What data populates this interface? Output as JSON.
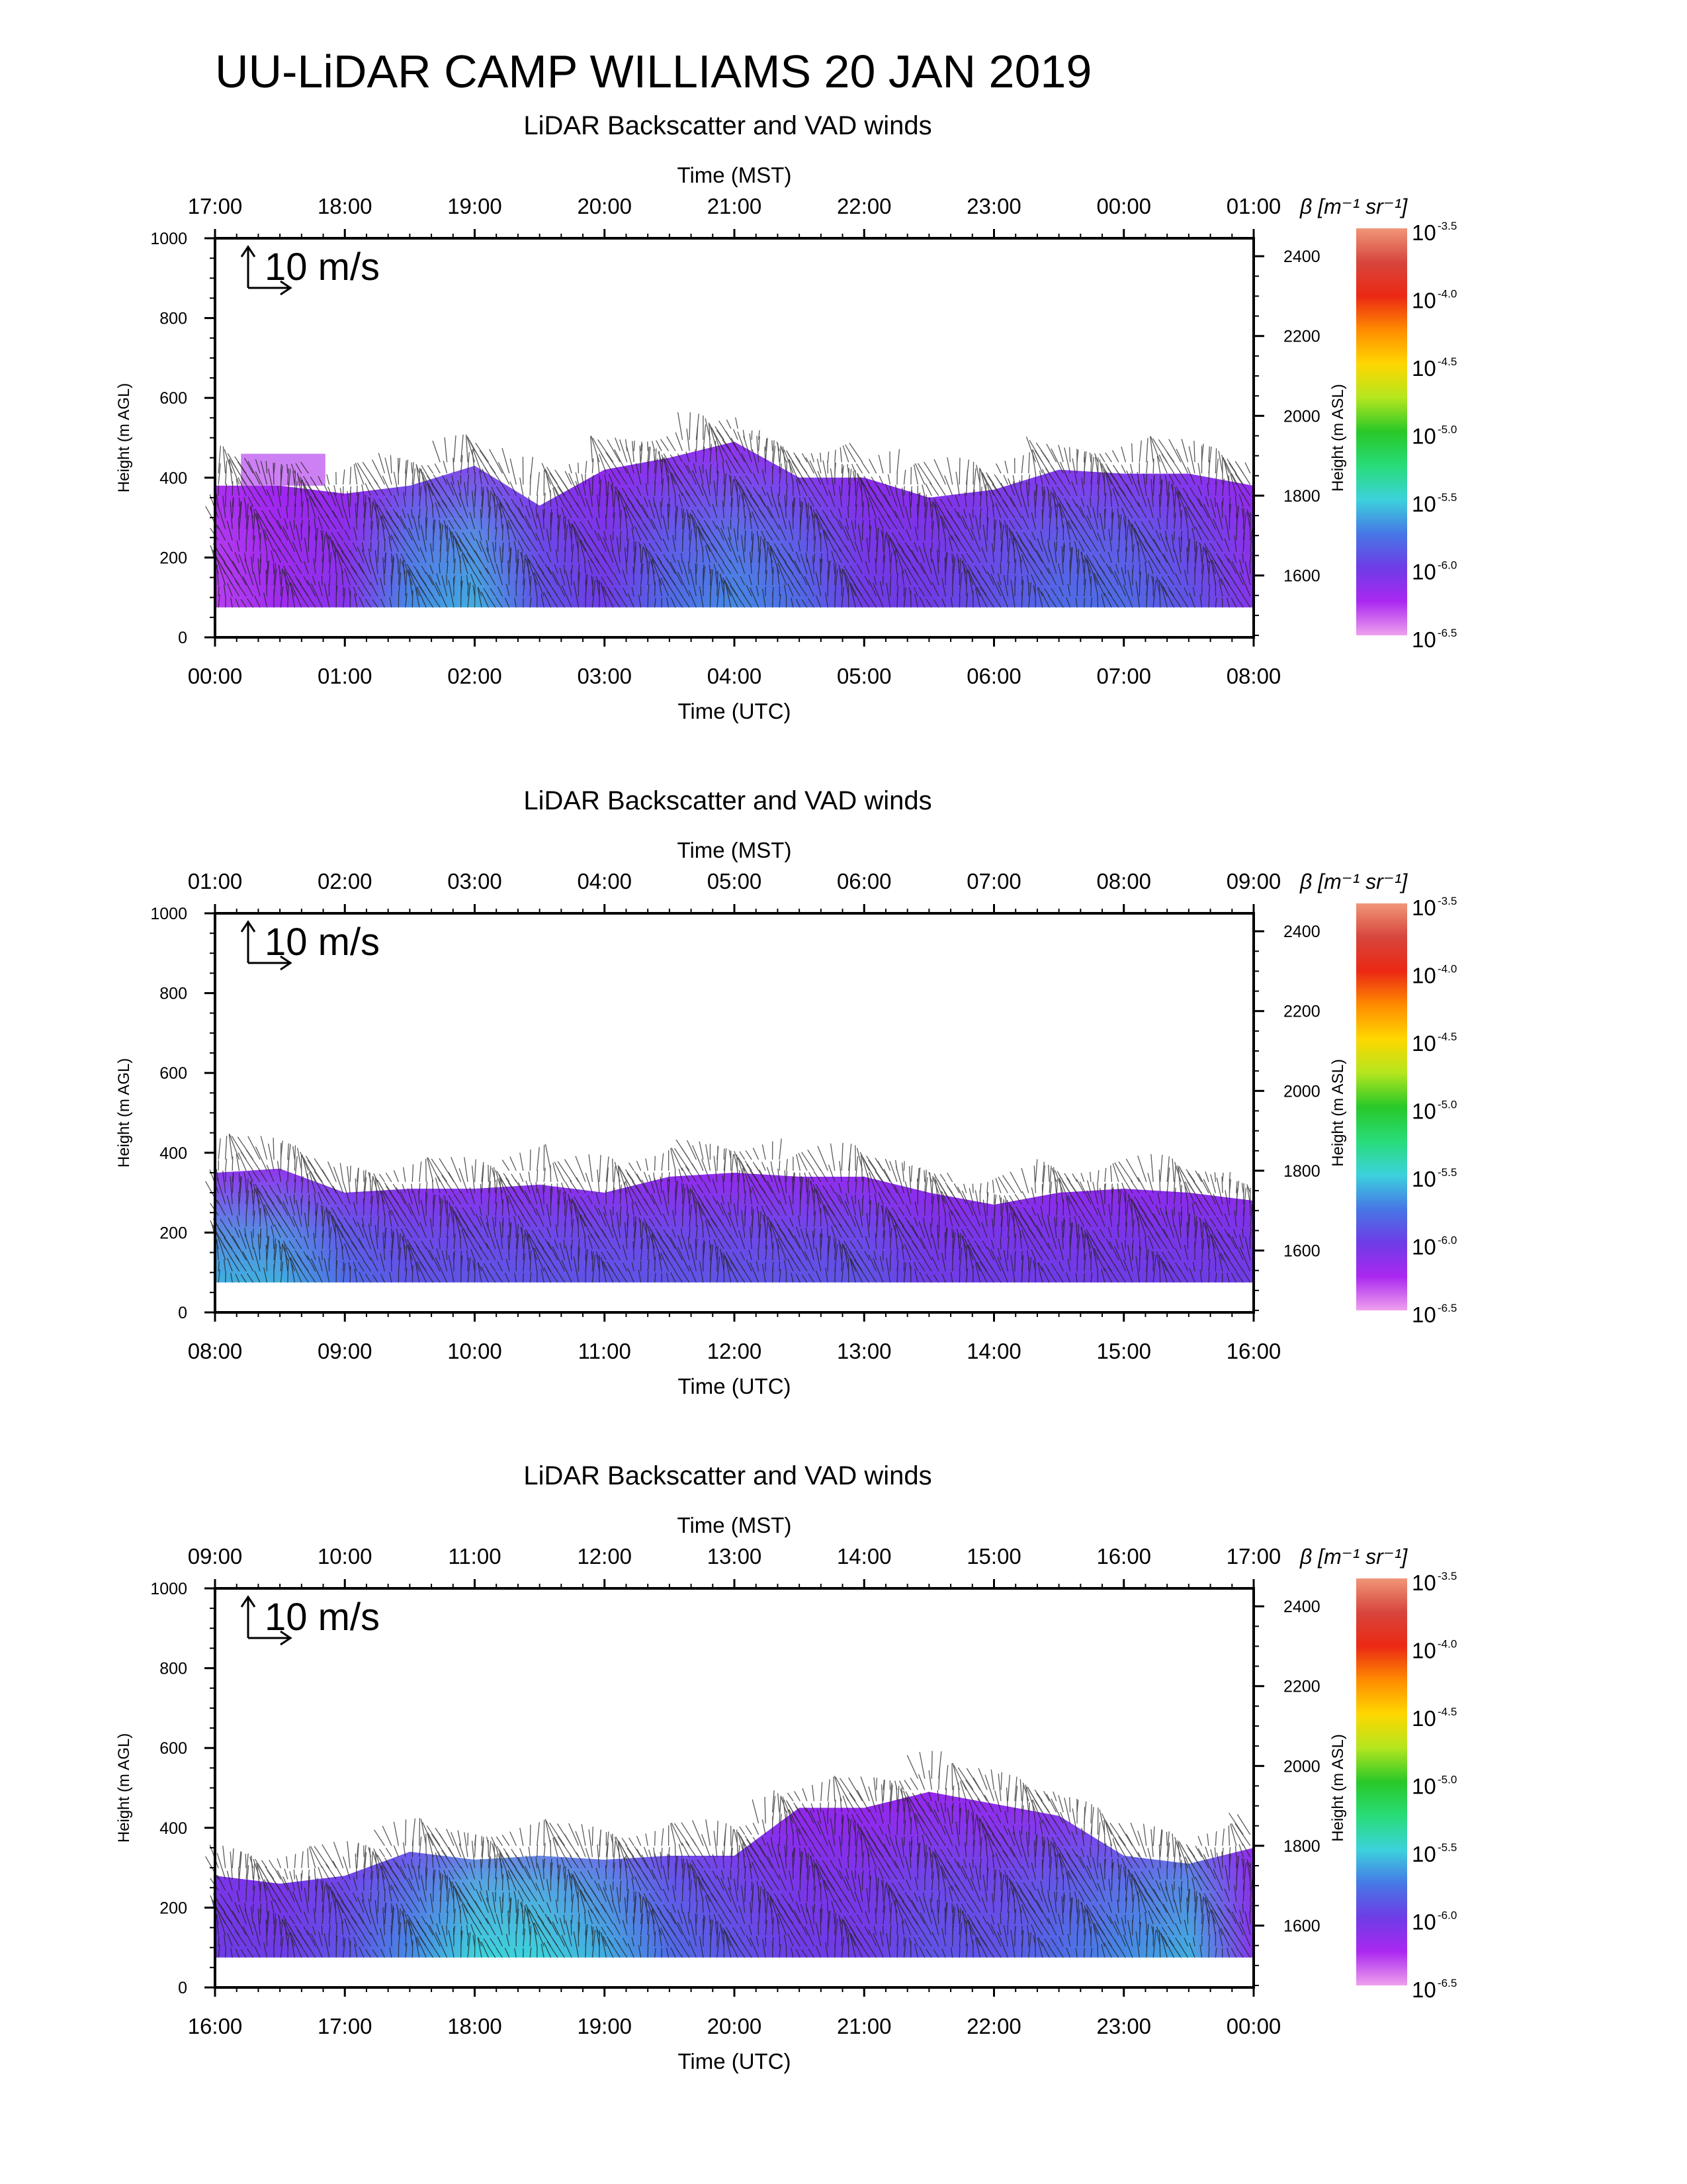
{
  "page": {
    "title": "UU-LiDAR CAMP WILLIAMS 20 JAN 2019"
  },
  "chart_data": [
    {
      "type": "heatmap",
      "title": "LiDAR Backscatter and VAD winds",
      "xlabel_bottom": "Time (UTC)",
      "xlabel_top": "Time (MST)",
      "ylabel_left": "Height (m AGL)",
      "ylabel_right": "Height (m ASL)",
      "bottom_ticks": [
        "00:00",
        "01:00",
        "02:00",
        "03:00",
        "04:00",
        "05:00",
        "06:00",
        "07:00",
        "08:00"
      ],
      "top_ticks": [
        "17:00",
        "18:00",
        "19:00",
        "20:00",
        "21:00",
        "22:00",
        "23:00",
        "00:00",
        "01:00"
      ],
      "y_left_ticks": [
        0,
        200,
        400,
        600,
        800,
        1000
      ],
      "y_right_ticks": [
        1600,
        1800,
        2000,
        2200,
        2400
      ],
      "ylim_agl": [
        0,
        1000
      ],
      "ylim_asl": [
        1445,
        2445
      ],
      "wind_reference": "10 m/s",
      "colorbar": {
        "label": "β [m⁻¹ sr⁻¹]",
        "base": "10",
        "exponents": [
          "-3.5",
          "-4.0",
          "-4.5",
          "-5.0",
          "-5.5",
          "-6.0",
          "-6.5"
        ]
      },
      "x_hours": [
        0,
        0.5,
        1,
        1.5,
        2,
        2.5,
        3,
        3.5,
        4,
        4.5,
        5,
        5.5,
        6,
        6.5,
        7,
        7.5,
        8
      ],
      "layer_top_agl": [
        380,
        380,
        360,
        380,
        430,
        330,
        420,
        450,
        490,
        400,
        400,
        350,
        370,
        420,
        410,
        410,
        380
      ],
      "layer_bottom_agl": 75,
      "max_log_beta": [
        -6.3,
        -6.2,
        -6.1,
        -5.7,
        -5.6,
        -5.9,
        -6.0,
        -5.8,
        -5.7,
        -5.8,
        -6.0,
        -6.0,
        -5.9,
        -5.8,
        -5.8,
        -5.9,
        -6.1
      ],
      "upper_patch": {
        "x_hours": [
          0.2,
          0.85
        ],
        "top_agl": 460,
        "bottom_agl": 380
      }
    },
    {
      "type": "heatmap",
      "title": "LiDAR Backscatter and VAD winds",
      "xlabel_bottom": "Time (UTC)",
      "xlabel_top": "Time (MST)",
      "ylabel_left": "Height (m AGL)",
      "ylabel_right": "Height (m ASL)",
      "bottom_ticks": [
        "08:00",
        "09:00",
        "10:00",
        "11:00",
        "12:00",
        "13:00",
        "14:00",
        "15:00",
        "16:00"
      ],
      "top_ticks": [
        "01:00",
        "02:00",
        "03:00",
        "04:00",
        "05:00",
        "06:00",
        "07:00",
        "08:00",
        "09:00"
      ],
      "y_left_ticks": [
        0,
        200,
        400,
        600,
        800,
        1000
      ],
      "y_right_ticks": [
        1600,
        1800,
        2000,
        2200,
        2400
      ],
      "ylim_agl": [
        0,
        1000
      ],
      "ylim_asl": [
        1445,
        2445
      ],
      "wind_reference": "10 m/s",
      "colorbar": {
        "label": "β [m⁻¹ sr⁻¹]",
        "base": "10",
        "exponents": [
          "-3.5",
          "-4.0",
          "-4.5",
          "-5.0",
          "-5.5",
          "-6.0",
          "-6.5"
        ]
      },
      "x_hours": [
        0,
        0.5,
        1,
        1.5,
        2,
        2.5,
        3,
        3.5,
        4,
        4.5,
        5,
        5.5,
        6,
        6.5,
        7,
        7.5,
        8
      ],
      "layer_top_agl": [
        350,
        360,
        300,
        310,
        310,
        320,
        300,
        340,
        350,
        340,
        340,
        300,
        270,
        300,
        310,
        300,
        280
      ],
      "layer_bottom_agl": 75,
      "max_log_beta": [
        -5.6,
        -5.6,
        -5.8,
        -5.9,
        -5.9,
        -5.9,
        -5.9,
        -5.9,
        -5.9,
        -5.9,
        -5.9,
        -6.0,
        -6.0,
        -6.0,
        -6.0,
        -6.0,
        -6.0
      ]
    },
    {
      "type": "heatmap",
      "title": "LiDAR Backscatter and VAD winds",
      "xlabel_bottom": "Time (UTC)",
      "xlabel_top": "Time (MST)",
      "ylabel_left": "Height (m AGL)",
      "ylabel_right": "Height (m ASL)",
      "bottom_ticks": [
        "16:00",
        "17:00",
        "18:00",
        "19:00",
        "20:00",
        "21:00",
        "22:00",
        "23:00",
        "00:00"
      ],
      "top_ticks": [
        "09:00",
        "10:00",
        "11:00",
        "12:00",
        "13:00",
        "14:00",
        "15:00",
        "16:00",
        "17:00"
      ],
      "y_left_ticks": [
        0,
        200,
        400,
        600,
        800,
        1000
      ],
      "y_right_ticks": [
        1600,
        1800,
        2000,
        2200,
        2400
      ],
      "ylim_agl": [
        0,
        1000
      ],
      "ylim_asl": [
        1445,
        2445
      ],
      "wind_reference": "10 m/s",
      "colorbar": {
        "label": "β [m⁻¹ sr⁻¹]",
        "base": "10",
        "exponents": [
          "-3.5",
          "-4.0",
          "-4.5",
          "-5.0",
          "-5.5",
          "-6.0",
          "-6.5"
        ]
      },
      "x_hours": [
        0,
        0.5,
        1,
        1.5,
        2,
        2.5,
        3,
        3.5,
        4,
        4.5,
        5,
        5.5,
        6,
        6.5,
        7,
        7.5,
        8
      ],
      "layer_top_agl": [
        280,
        260,
        280,
        340,
        320,
        330,
        320,
        330,
        330,
        450,
        450,
        490,
        460,
        430,
        330,
        310,
        350
      ],
      "layer_bottom_agl": 75,
      "max_log_beta": [
        -6.0,
        -6.0,
        -5.9,
        -5.7,
        -5.5,
        -5.5,
        -5.6,
        -5.8,
        -5.9,
        -6.0,
        -6.0,
        -5.9,
        -5.9,
        -5.8,
        -5.7,
        -5.6,
        -6.1
      ]
    }
  ]
}
